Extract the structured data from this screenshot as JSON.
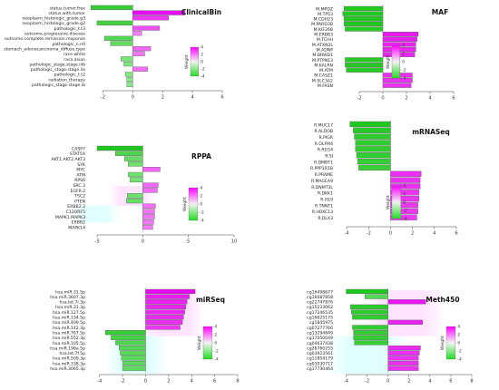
{
  "chart_data": [
    {
      "type": "bar",
      "orientation": "horizontal",
      "title": "ClinicalBin",
      "xlim": [
        -3,
        6
      ],
      "xticks": [
        -2,
        0,
        2,
        4,
        6
      ],
      "legend": {
        "title": "Weight",
        "ticks": [
          "4",
          "2",
          "0",
          "-2",
          "-4"
        ]
      },
      "categories": [
        "status.tumor.free",
        "status.with.tumor",
        "neoplasm_histologic_grade.g3",
        "neoplasm_histologic_grade.g2",
        "pathologic_t.t3",
        "outcome.progressive.disease",
        "outcome.complete.remission.response",
        "pathologic_n.n0",
        "stomach_adenocarcinoma_diffuse.type",
        "race.white",
        "race.asian",
        "pathologic_stage.stage.iiib",
        "pathologic_stage.stage.iia",
        "pathologic_t.t2",
        "radiation_therapy",
        "pathologic_stage.stage.ib"
      ],
      "values": [
        -2.8,
        3.5,
        2.4,
        -2.4,
        1.8,
        0.6,
        -1.9,
        -1.5,
        1.2,
        0.8,
        -0.8,
        -0.6,
        1.0,
        -0.5,
        -0.4,
        -0.4
      ]
    },
    {
      "type": "bar",
      "orientation": "horizontal",
      "title": "MAF",
      "xlim": [
        -4,
        6
      ],
      "xticks": [
        -2,
        0,
        2,
        4,
        6
      ],
      "legend": {
        "title": "Weight",
        "ticks": [
          "4",
          "2",
          "0",
          "-2",
          "-4"
        ]
      },
      "categories": [
        "M.MPDZ",
        "M.TP53",
        "M.CDH23",
        "M.PARD3B",
        "M.KIF26B",
        "M.ERBB3",
        "M.TCHH",
        "M.ATXN2L",
        "M.ADNP",
        "M.BRWD1",
        "M.PTPN13",
        "M.KALRN",
        "M.ATM",
        "M.CASZ1",
        "M.SLC3A2",
        "M.FASN"
      ],
      "values": [
        -3.3,
        -3.4,
        -3.3,
        -3.3,
        -3.2,
        3.0,
        2.9,
        2.8,
        2.8,
        2.7,
        -3.2,
        -3.2,
        -3.1,
        2.5,
        2.5,
        2.4
      ]
    },
    {
      "type": "bar",
      "orientation": "horizontal",
      "title": "RPPA",
      "xlim": [
        -6,
        10
      ],
      "xticks": [
        -5,
        0,
        5,
        10
      ],
      "legend": {
        "title": "Weight",
        "ticks": [
          "4",
          "2",
          "0",
          "-2",
          "-4"
        ]
      },
      "categories": [
        "CASP7",
        "STAT5A",
        "AKT1.AKT2.AKT3",
        "SYK",
        "MYC",
        "ATM",
        "RPS6",
        "SRC.3",
        "EGFR.2",
        "TSC2",
        "PTEN",
        "ERBB2.2",
        "C12ORF5",
        "MAPK1.MAPK3",
        "ERBB2",
        "MAPK14"
      ],
      "values": [
        -5.0,
        -3.0,
        -2.0,
        -1.6,
        1.9,
        -1.6,
        -1.4,
        1.7,
        1.6,
        -1.7,
        -1.8,
        1.4,
        1.3,
        1.3,
        1.2,
        1.1
      ]
    },
    {
      "type": "bar",
      "orientation": "horizontal",
      "title": "mRNASeq",
      "xlim": [
        -5,
        6
      ],
      "xticks": [
        -4,
        -2,
        0,
        2,
        4,
        6
      ],
      "legend": {
        "title": "Weight",
        "ticks": [
          "4",
          "2",
          "0",
          "-2",
          "-4"
        ]
      },
      "categories": [
        "R.MUC17",
        "R.ALDOB",
        "R.PIGR",
        "R.OLFM4",
        "R.REG4",
        "R.SI",
        "R.DMBT1",
        "R.PPP1R1B",
        "R.PRAME",
        "R.MAGEA9",
        "R.DNMT3L",
        "R.DKK1",
        "R.H19",
        "R.TNNT1",
        "R.HOXC13",
        "R.DLX3"
      ],
      "values": [
        -3.7,
        -3.4,
        -3.3,
        -3.2,
        -3.2,
        -3.1,
        -3.0,
        -2.9,
        2.8,
        2.7,
        2.7,
        2.6,
        2.6,
        2.5,
        2.5,
        2.4
      ]
    },
    {
      "type": "bar",
      "orientation": "horizontal",
      "title": "miRSeq",
      "xlim": [
        -5,
        8
      ],
      "xticks": [
        -4,
        -2,
        0,
        2,
        4,
        6,
        8
      ],
      "legend": {
        "title": "Weight",
        "ticks": [
          "4",
          "2",
          "0",
          "-2",
          "-4"
        ]
      },
      "categories": [
        "hsa.miR.31.5p",
        "hsa.miR.3607.3p",
        "hsa.let.7i.3p",
        "hsa.miR.31.3p",
        "hsa.miR.127.5p",
        "hsa.miR.134.5p",
        "hsa.miR.409.5p",
        "hsa.miR.142.3p",
        "hsa.miR.767.5p",
        "hsa.miR.552.3p",
        "hsa.miR.105.5p",
        "hsa.miR.196a.5p",
        "hsa.let.7f.5p",
        "hsa.miR.509.3p",
        "hsa.miR.338.3p",
        "hsa.miR.3065.3p"
      ],
      "values": [
        4.3,
        3.8,
        3.6,
        3.5,
        3.4,
        3.3,
        3.2,
        3.0,
        -3.5,
        -3.0,
        -2.6,
        -2.3,
        -2.2,
        -2.1,
        -2.0,
        -2.0
      ]
    },
    {
      "type": "bar",
      "orientation": "horizontal",
      "title": "Meth450",
      "xlim": [
        -5,
        8
      ],
      "xticks": [
        -4,
        -2,
        0,
        2,
        4,
        6,
        8
      ],
      "legend": {
        "title": "Weight",
        "ticks": [
          "4",
          "2",
          "0",
          "-2",
          "-4"
        ]
      },
      "categories": [
        "cg16498677",
        "cg16687858",
        "cg22747876",
        "cg15233062",
        "cg17246535",
        "cg16625175",
        "cg1845975",
        "cg07277766",
        "cg13294849",
        "cg17050049",
        "cg04637438",
        "cg26780255",
        "cg03923561",
        "cg11854179",
        "cg03030717",
        "cg17730464"
      ],
      "values": [
        -4.0,
        -2.2,
        3.6,
        -3.6,
        -3.5,
        -3.4,
        3.3,
        -3.4,
        -3.3,
        -3.3,
        -3.2,
        3.1,
        3.0,
        2.9,
        2.9,
        2.9
      ]
    }
  ]
}
